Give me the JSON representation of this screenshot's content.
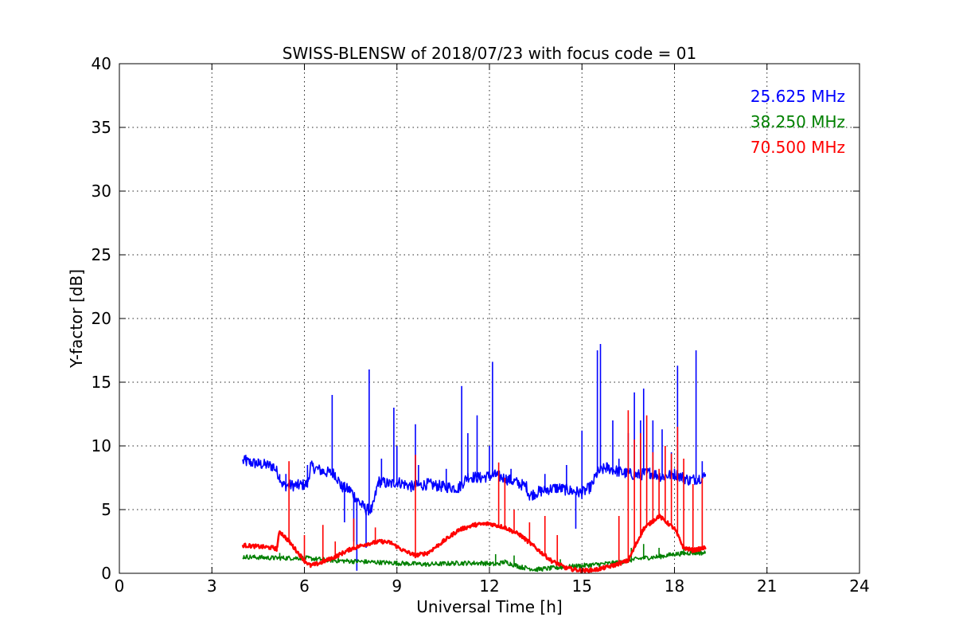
{
  "chart_data": {
    "type": "line",
    "title": "SWISS-BLENSW of 2018/07/23 with focus code = 01",
    "xlabel": "Universal Time [h]",
    "ylabel": "Y-factor [dB]",
    "xlim": [
      0,
      24
    ],
    "ylim": [
      0,
      40
    ],
    "xticks": [
      0,
      3,
      6,
      9,
      12,
      15,
      18,
      21,
      24
    ],
    "yticks": [
      0,
      5,
      10,
      15,
      20,
      25,
      30,
      35,
      40
    ],
    "grid": true,
    "legend_placement": "top-right",
    "series": [
      {
        "name": "25.625 MHz",
        "color": "#0000ff",
        "points": [
          [
            4.0,
            8.8
          ],
          [
            4.5,
            8.6
          ],
          [
            5.0,
            8.4
          ],
          [
            5.2,
            7.6
          ],
          [
            5.3,
            6.9
          ],
          [
            5.8,
            6.9
          ],
          [
            6.1,
            7.0
          ],
          [
            6.2,
            8.4
          ],
          [
            6.6,
            8.0
          ],
          [
            7.0,
            7.8
          ],
          [
            7.2,
            6.8
          ],
          [
            7.5,
            6.5
          ],
          [
            7.8,
            5.5
          ],
          [
            8.0,
            5.0
          ],
          [
            8.2,
            5.0
          ],
          [
            8.4,
            7.2
          ],
          [
            8.8,
            7.0
          ],
          [
            9.0,
            7.2
          ],
          [
            9.5,
            6.8
          ],
          [
            10.0,
            7.0
          ],
          [
            10.5,
            6.8
          ],
          [
            11.0,
            6.7
          ],
          [
            11.3,
            7.6
          ],
          [
            11.7,
            7.5
          ],
          [
            12.2,
            7.7
          ],
          [
            12.8,
            7.2
          ],
          [
            13.2,
            6.8
          ],
          [
            13.3,
            6.1
          ],
          [
            13.6,
            6.4
          ],
          [
            13.9,
            6.6
          ],
          [
            14.2,
            6.7
          ],
          [
            14.6,
            6.5
          ],
          [
            14.8,
            6.4
          ],
          [
            15.0,
            6.3
          ],
          [
            15.3,
            6.8
          ],
          [
            15.5,
            7.9
          ],
          [
            15.8,
            8.3
          ],
          [
            16.3,
            7.9
          ],
          [
            16.8,
            7.7
          ],
          [
            17.2,
            7.9
          ],
          [
            17.6,
            7.6
          ],
          [
            18.0,
            7.8
          ],
          [
            18.5,
            7.3
          ],
          [
            19.0,
            7.6
          ]
        ],
        "spikes": [
          [
            4.1,
            9.3
          ],
          [
            5.4,
            7.8
          ],
          [
            6.1,
            8.5
          ],
          [
            6.9,
            14.0
          ],
          [
            7.3,
            4.0
          ],
          [
            7.6,
            2.5
          ],
          [
            7.7,
            0.2
          ],
          [
            8.0,
            2.0
          ],
          [
            8.1,
            16.0
          ],
          [
            8.5,
            9.0
          ],
          [
            8.9,
            13.0
          ],
          [
            9.0,
            10.0
          ],
          [
            9.6,
            11.7
          ],
          [
            9.7,
            8.5
          ],
          [
            10.6,
            8.2
          ],
          [
            11.1,
            14.7
          ],
          [
            11.3,
            11.0
          ],
          [
            11.6,
            12.4
          ],
          [
            12.0,
            10.0
          ],
          [
            12.1,
            16.6
          ],
          [
            12.7,
            8.2
          ],
          [
            13.8,
            7.8
          ],
          [
            14.5,
            8.5
          ],
          [
            14.8,
            3.5
          ],
          [
            15.0,
            11.2
          ],
          [
            15.5,
            17.5
          ],
          [
            15.6,
            18.0
          ],
          [
            16.0,
            12.0
          ],
          [
            16.2,
            9.0
          ],
          [
            16.5,
            11.0
          ],
          [
            16.7,
            14.2
          ],
          [
            16.9,
            12.0
          ],
          [
            17.0,
            14.5
          ],
          [
            17.3,
            12.0
          ],
          [
            17.6,
            11.3
          ],
          [
            17.9,
            9.5
          ],
          [
            18.1,
            16.3
          ],
          [
            18.7,
            17.5
          ],
          [
            18.9,
            8.8
          ]
        ]
      },
      {
        "name": "38.250 MHz",
        "color": "#008000",
        "points": [
          [
            4.0,
            1.3
          ],
          [
            5.0,
            1.2
          ],
          [
            6.0,
            1.2
          ],
          [
            7.0,
            1.0
          ],
          [
            8.0,
            0.9
          ],
          [
            9.0,
            0.8
          ],
          [
            10.0,
            0.7
          ],
          [
            11.0,
            0.8
          ],
          [
            11.8,
            0.8
          ],
          [
            12.2,
            0.7
          ],
          [
            12.5,
            0.9
          ],
          [
            13.0,
            0.5
          ],
          [
            13.5,
            0.3
          ],
          [
            14.0,
            0.4
          ],
          [
            14.5,
            0.5
          ],
          [
            15.0,
            0.6
          ],
          [
            15.5,
            0.7
          ],
          [
            16.0,
            0.8
          ],
          [
            16.5,
            1.0
          ],
          [
            17.0,
            1.2
          ],
          [
            17.5,
            1.3
          ],
          [
            18.0,
            1.5
          ],
          [
            18.5,
            1.6
          ],
          [
            19.0,
            1.6
          ]
        ],
        "spikes": [
          [
            5.2,
            1.6
          ],
          [
            12.2,
            1.5
          ],
          [
            12.8,
            1.4
          ],
          [
            14.3,
            1.1
          ],
          [
            16.6,
            2.0
          ],
          [
            17.0,
            2.3
          ],
          [
            17.5,
            2.0
          ],
          [
            18.3,
            2.2
          ],
          [
            18.8,
            2.0
          ]
        ]
      },
      {
        "name": "70.500 MHz",
        "color": "#ff0000",
        "points": [
          [
            4.0,
            2.2
          ],
          [
            5.0,
            2.0
          ],
          [
            5.1,
            1.9
          ],
          [
            5.2,
            3.3
          ],
          [
            5.5,
            2.5
          ],
          [
            6.0,
            1.0
          ],
          [
            6.2,
            0.6
          ],
          [
            6.5,
            0.8
          ],
          [
            7.0,
            1.3
          ],
          [
            7.5,
            1.9
          ],
          [
            8.0,
            2.3
          ],
          [
            8.5,
            2.5
          ],
          [
            8.8,
            2.4
          ],
          [
            9.2,
            1.8
          ],
          [
            9.6,
            1.4
          ],
          [
            10.0,
            1.6
          ],
          [
            10.5,
            2.5
          ],
          [
            11.0,
            3.4
          ],
          [
            11.5,
            3.8
          ],
          [
            12.0,
            3.9
          ],
          [
            12.5,
            3.6
          ],
          [
            13.0,
            3.0
          ],
          [
            13.5,
            2.0
          ],
          [
            14.0,
            1.0
          ],
          [
            14.5,
            0.4
          ],
          [
            15.0,
            0.2
          ],
          [
            15.5,
            0.3
          ],
          [
            16.0,
            0.6
          ],
          [
            16.5,
            1.0
          ],
          [
            17.0,
            3.5
          ],
          [
            17.5,
            4.5
          ],
          [
            18.0,
            3.5
          ],
          [
            18.3,
            2.0
          ],
          [
            18.6,
            1.8
          ],
          [
            19.0,
            2.0
          ]
        ],
        "spikes": [
          [
            5.5,
            8.8
          ],
          [
            6.0,
            3.0
          ],
          [
            6.6,
            3.8
          ],
          [
            7.0,
            2.5
          ],
          [
            7.6,
            4.3
          ],
          [
            8.3,
            3.6
          ],
          [
            9.6,
            9.3
          ],
          [
            12.3,
            8.7
          ],
          [
            12.5,
            7.5
          ],
          [
            12.8,
            5.0
          ],
          [
            13.3,
            4.0
          ],
          [
            13.8,
            4.5
          ],
          [
            14.2,
            3.0
          ],
          [
            16.2,
            4.5
          ],
          [
            16.5,
            12.8
          ],
          [
            16.7,
            10.5
          ],
          [
            16.9,
            11.0
          ],
          [
            17.1,
            12.4
          ],
          [
            17.3,
            9.5
          ],
          [
            17.5,
            8.2
          ],
          [
            17.7,
            10.0
          ],
          [
            17.9,
            9.4
          ],
          [
            18.1,
            11.5
          ],
          [
            18.3,
            9.0
          ],
          [
            18.6,
            7.0
          ],
          [
            18.9,
            7.5
          ]
        ]
      }
    ]
  }
}
